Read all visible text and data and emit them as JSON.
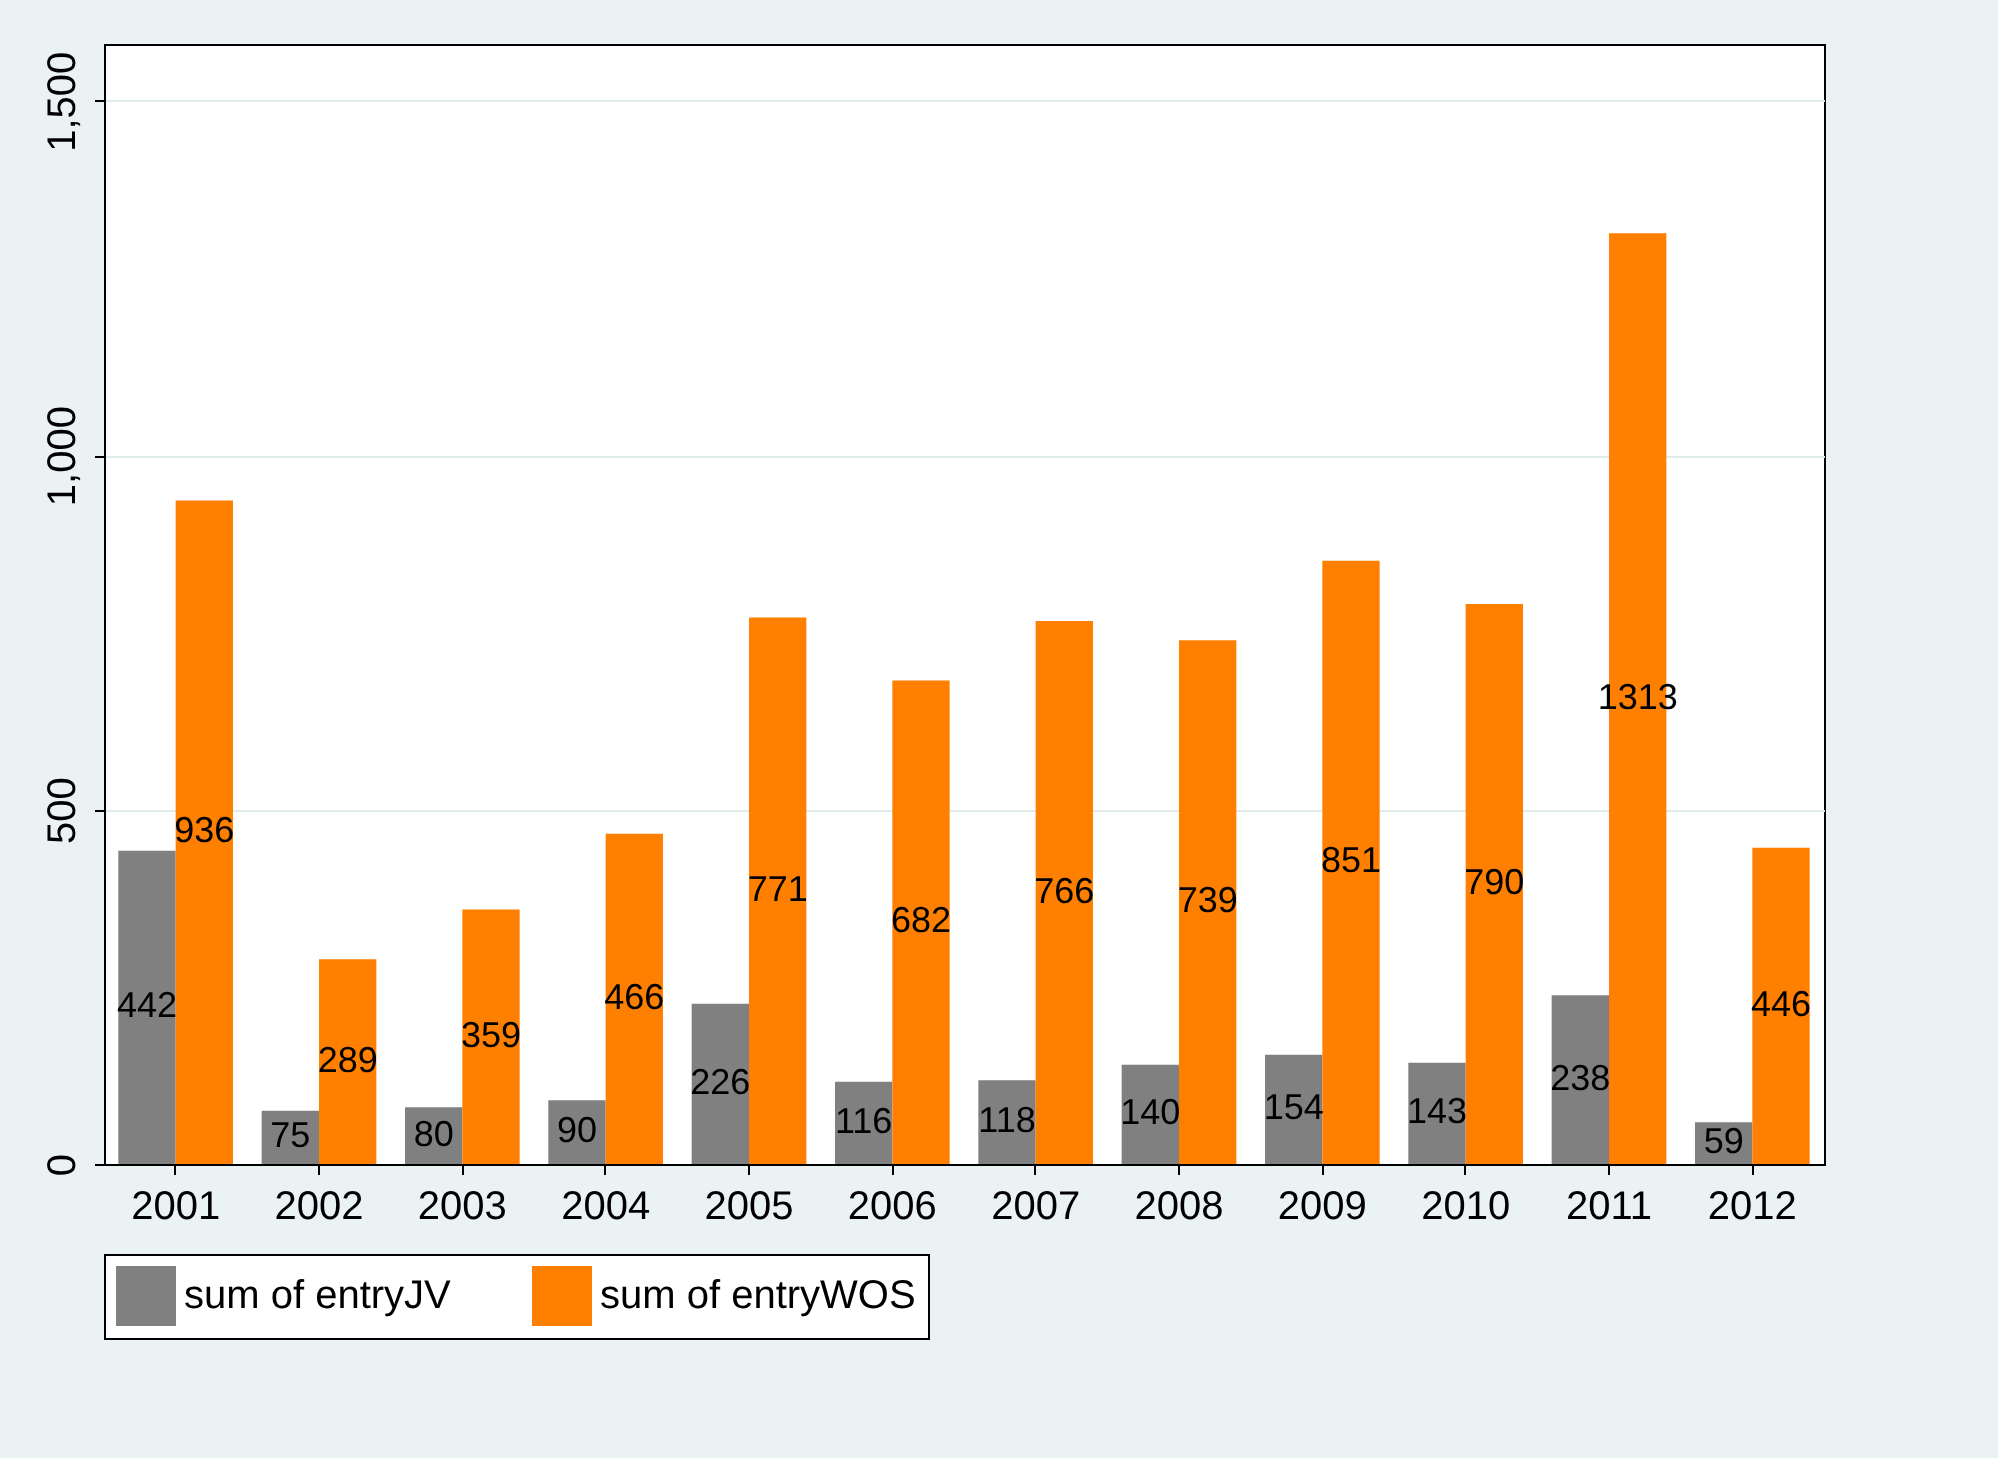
{
  "chart_data": {
    "type": "bar",
    "categories": [
      "2001",
      "2002",
      "2003",
      "2004",
      "2005",
      "2006",
      "2007",
      "2008",
      "2009",
      "2010",
      "2011",
      "2012"
    ],
    "series": [
      {
        "name": "sum of entryJV",
        "color": "#808080",
        "values": [
          442,
          75,
          80,
          90,
          226,
          116,
          118,
          140,
          154,
          143,
          238,
          59
        ]
      },
      {
        "name": "sum of entryWOS",
        "color": "#ff7f00",
        "values": [
          936,
          289,
          359,
          466,
          771,
          682,
          766,
          739,
          851,
          790,
          1313,
          446
        ]
      }
    ],
    "ylim": [
      0,
      1580
    ],
    "yticks": [
      {
        "value": 0,
        "label": "0"
      },
      {
        "value": 500,
        "label": "500"
      },
      {
        "value": 1000,
        "label": "1,000"
      },
      {
        "value": 1500,
        "label": "1,500"
      }
    ],
    "grid": "y",
    "legend": "bottom",
    "data_labels": true
  }
}
